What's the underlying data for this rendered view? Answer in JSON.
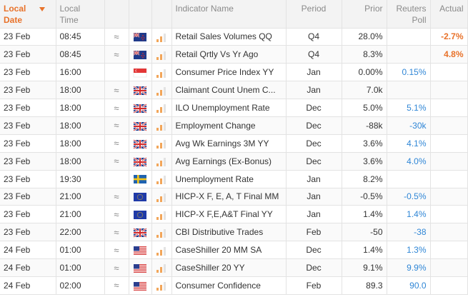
{
  "headers": {
    "date": "Local Date",
    "time": "Local Time",
    "indicator": "Indicator Name",
    "period": "Period",
    "prior": "Prior",
    "poll": "Reuters Poll",
    "actual": "Actual"
  },
  "colors": {
    "accent": "#e8722a",
    "poll": "#2f86d6"
  },
  "rows": [
    {
      "date": "23 Feb",
      "time": "08:45",
      "approx": "≈",
      "flag": "nz",
      "indicator": "Retail Sales Volumes QQ",
      "period": "Q4",
      "prior": "28.0%",
      "poll": "",
      "actual": "-2.7%"
    },
    {
      "date": "23 Feb",
      "time": "08:45",
      "approx": "≈",
      "flag": "nz",
      "indicator": "Retail Qrtly Vs Yr Ago",
      "period": "Q4",
      "prior": "8.3%",
      "poll": "",
      "actual": "4.8%"
    },
    {
      "date": "23 Feb",
      "time": "16:00",
      "approx": "",
      "flag": "sg",
      "indicator": "Consumer Price Index YY",
      "period": "Jan",
      "prior": "0.00%",
      "poll": "0.15%",
      "actual": ""
    },
    {
      "date": "23 Feb",
      "time": "18:00",
      "approx": "≈",
      "flag": "uk",
      "indicator": "Claimant Count Unem C...",
      "period": "Jan",
      "prior": "7.0k",
      "poll": "",
      "actual": ""
    },
    {
      "date": "23 Feb",
      "time": "18:00",
      "approx": "≈",
      "flag": "uk",
      "indicator": "ILO Unemployment Rate",
      "period": "Dec",
      "prior": "5.0%",
      "poll": "5.1%",
      "actual": ""
    },
    {
      "date": "23 Feb",
      "time": "18:00",
      "approx": "≈",
      "flag": "uk",
      "indicator": "Employment Change",
      "period": "Dec",
      "prior": "-88k",
      "poll": "-30k",
      "actual": ""
    },
    {
      "date": "23 Feb",
      "time": "18:00",
      "approx": "≈",
      "flag": "uk",
      "indicator": "Avg Wk Earnings 3M YY",
      "period": "Dec",
      "prior": "3.6%",
      "poll": "4.1%",
      "actual": ""
    },
    {
      "date": "23 Feb",
      "time": "18:00",
      "approx": "≈",
      "flag": "uk",
      "indicator": "Avg Earnings (Ex-Bonus)",
      "period": "Dec",
      "prior": "3.6%",
      "poll": "4.0%",
      "actual": ""
    },
    {
      "date": "23 Feb",
      "time": "19:30",
      "approx": "",
      "flag": "se",
      "indicator": "Unemployment Rate",
      "period": "Jan",
      "prior": "8.2%",
      "poll": "",
      "actual": ""
    },
    {
      "date": "23 Feb",
      "time": "21:00",
      "approx": "≈",
      "flag": "eu",
      "indicator": "HICP-X F, E, A, T Final MM",
      "period": "Jan",
      "prior": "-0.5%",
      "poll": "-0.5%",
      "actual": ""
    },
    {
      "date": "23 Feb",
      "time": "21:00",
      "approx": "≈",
      "flag": "eu",
      "indicator": "HICP-X F,E,A&T Final YY",
      "period": "Jan",
      "prior": "1.4%",
      "poll": "1.4%",
      "actual": ""
    },
    {
      "date": "23 Feb",
      "time": "22:00",
      "approx": "≈",
      "flag": "uk",
      "indicator": "CBI Distributive Trades",
      "period": "Feb",
      "prior": "-50",
      "poll": "-38",
      "actual": ""
    },
    {
      "date": "24 Feb",
      "time": "01:00",
      "approx": "≈",
      "flag": "us",
      "indicator": "CaseShiller 20 MM SA",
      "period": "Dec",
      "prior": "1.4%",
      "poll": "1.3%",
      "actual": ""
    },
    {
      "date": "24 Feb",
      "time": "01:00",
      "approx": "≈",
      "flag": "us",
      "indicator": "CaseShiller 20 YY",
      "period": "Dec",
      "prior": "9.1%",
      "poll": "9.9%",
      "actual": ""
    },
    {
      "date": "24 Feb",
      "time": "02:00",
      "approx": "≈",
      "flag": "us",
      "indicator": "Consumer Confidence",
      "period": "Feb",
      "prior": "89.3",
      "poll": "90.0",
      "actual": ""
    }
  ]
}
